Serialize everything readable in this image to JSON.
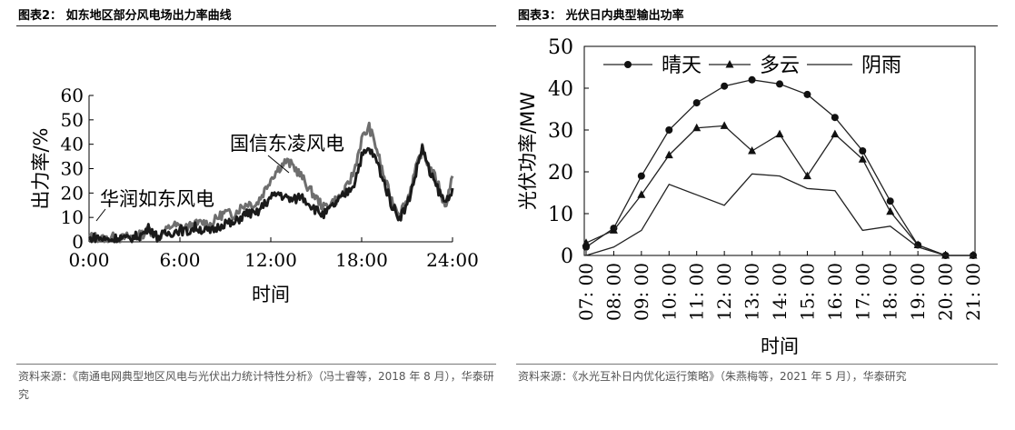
{
  "panels": [
    {
      "title": "图表2： 如东地区部分风电场出力率曲线",
      "source": "资料来源：《南通电网典型地区风电与光伏出力统计特性分析》（冯士睿等，2018 年 8 月），华泰研究"
    },
    {
      "title": "图表3： 光伏日内典型输出功率",
      "source": "资料来源：《水光互补日内优化运行策略》（朱燕梅等，2021 年 5 月），华泰研究"
    }
  ],
  "chart_data": [
    {
      "type": "line",
      "xlabel": "时间",
      "ylabel": "出力率/%",
      "x_ticks": [
        "0:00",
        "6:00",
        "12:00",
        "18:00",
        "24:00"
      ],
      "y_ticks": [
        0,
        10,
        20,
        30,
        40,
        50,
        60
      ],
      "xlim": [
        0,
        24
      ],
      "ylim": [
        0,
        60
      ],
      "series": [
        {
          "name": "国信东凌风电",
          "color": "#6e6e6e",
          "x": [
            0,
            0.5,
            1,
            1.5,
            2,
            2.5,
            3,
            3.5,
            4,
            4.5,
            5,
            5.5,
            6,
            6.5,
            7,
            7.5,
            8,
            8.5,
            9,
            9.5,
            10,
            10.5,
            11,
            11.5,
            12,
            12.5,
            13,
            13.5,
            14,
            14.5,
            15,
            15.5,
            16,
            16.5,
            17,
            17.5,
            18,
            18.5,
            19,
            19.5,
            20,
            20.5,
            21,
            21.5,
            22,
            22.5,
            23,
            23.5,
            24
          ],
          "y": [
            2,
            2,
            1,
            2,
            1,
            2,
            2,
            3,
            5,
            2,
            4,
            7,
            6,
            6,
            7,
            8,
            7,
            10,
            12,
            11,
            14,
            16,
            15,
            20,
            26,
            30,
            33,
            31,
            27,
            22,
            18,
            14,
            16,
            18,
            22,
            29,
            42,
            47,
            38,
            26,
            17,
            12,
            17,
            28,
            38,
            30,
            25,
            14,
            27
          ]
        },
        {
          "name": "华润如东风电",
          "color": "#1a1a1a",
          "x": [
            0,
            0.5,
            1,
            1.5,
            2,
            2.5,
            3,
            3.5,
            4,
            4.5,
            5,
            5.5,
            6,
            6.5,
            7,
            7.5,
            8,
            8.5,
            9,
            9.5,
            10,
            10.5,
            11,
            11.5,
            12,
            12.5,
            13,
            13.5,
            14,
            14.5,
            15,
            15.5,
            16,
            16.5,
            17,
            17.5,
            18,
            18.5,
            19,
            19.5,
            20,
            20.5,
            21,
            21.5,
            22,
            22.5,
            23,
            23.5,
            24
          ],
          "y": [
            1,
            2,
            1,
            1,
            2,
            1,
            2,
            3,
            6,
            2,
            3,
            4,
            5,
            4,
            6,
            5,
            4,
            6,
            8,
            7,
            10,
            12,
            11,
            15,
            18,
            20,
            18,
            17,
            19,
            16,
            13,
            11,
            14,
            17,
            20,
            24,
            35,
            38,
            33,
            24,
            15,
            10,
            15,
            26,
            39,
            28,
            22,
            16,
            22
          ]
        }
      ],
      "annotations": [
        "国信东凌风电",
        "华润如东风电"
      ]
    },
    {
      "type": "line",
      "xlabel": "时间",
      "ylabel": "光伏功率/MW",
      "x_ticks": [
        "07: 00",
        "08: 00",
        "09: 00",
        "10: 00",
        "11: 00",
        "12: 00",
        "13: 00",
        "14: 00",
        "15: 00",
        "16: 00",
        "17: 00",
        "18: 00",
        "19: 00",
        "20: 00",
        "21: 00"
      ],
      "y_ticks": [
        0,
        10,
        20,
        30,
        40,
        50
      ],
      "ylim": [
        0,
        50
      ],
      "legend_position": "top",
      "series": [
        {
          "name": "晴天",
          "marker": "circle",
          "values": [
            2,
            6.5,
            19,
            30,
            36.5,
            40.5,
            42,
            41,
            38.5,
            33,
            25,
            13,
            2.5,
            0,
            0
          ]
        },
        {
          "name": "多云",
          "marker": "triangle",
          "values": [
            3,
            6,
            14.5,
            24,
            30.5,
            31,
            25,
            29,
            19,
            29,
            23,
            10.5,
            2.5,
            0,
            0
          ]
        },
        {
          "name": "阴雨",
          "marker": "none",
          "values": [
            0,
            2,
            6,
            17,
            14.5,
            12,
            19.5,
            19,
            16,
            15.5,
            6,
            7,
            2,
            0,
            0
          ]
        }
      ]
    }
  ]
}
